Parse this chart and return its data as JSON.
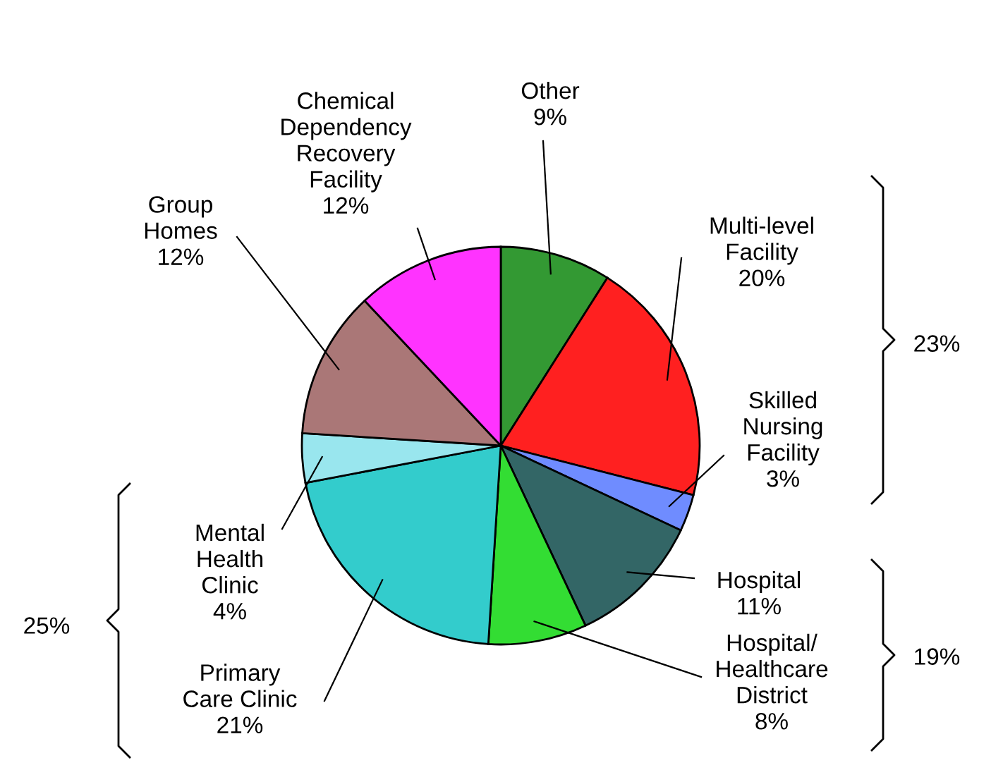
{
  "chart_data": {
    "type": "pie",
    "categories": [
      "Other",
      "Multi-level\nFacility",
      "Skilled\nNursing\nFacility",
      "Hospital",
      "Hospital/\nHealthcare\nDistrict",
      "Primary\nCare Clinic",
      "Mental\nHealth\nClinic",
      "Group\nHomes",
      "Chemical\nDependency\nRecovery\nFacility"
    ],
    "values": [
      9,
      20,
      3,
      11,
      8,
      21,
      4,
      12,
      12
    ],
    "colors": [
      "#339933",
      "#ff2020",
      "#6f8cff",
      "#336666",
      "#33dd33",
      "#33cccc",
      "#99e6ee",
      "#aa7777",
      "#ff33ff"
    ],
    "value_labels": [
      "9%",
      "20%",
      "3%",
      "11%",
      "8%",
      "21%",
      "4%",
      "12%",
      "12%"
    ],
    "annotations": [
      "23%",
      "19%",
      "25%"
    ]
  }
}
